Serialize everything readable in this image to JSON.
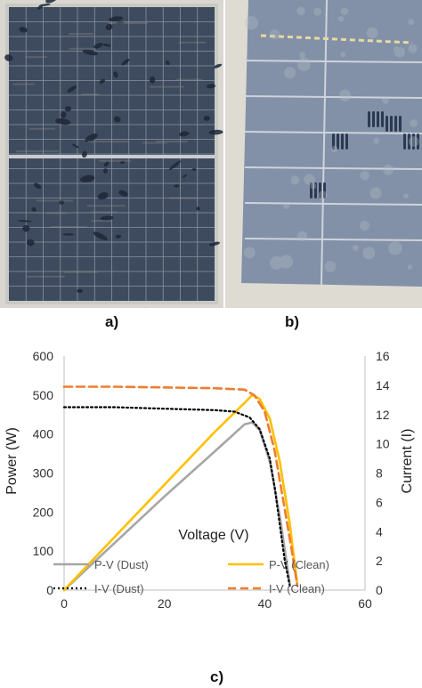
{
  "panels": {
    "a": "a)",
    "b": "b)",
    "c": "c)"
  },
  "photos": {
    "a": {
      "subject": "full solar module with dust and bird droppings",
      "frame_color": "#c7c9c4",
      "cell_color": "#3e4b5e"
    },
    "b": {
      "subject": "close-up of dusty solar cells with hand prints",
      "frame_color": "#dedbd2",
      "cell_color": "#8291a8"
    }
  },
  "chart_data": {
    "type": "line",
    "xlabel": "Voltage (V)",
    "ylabel_left": "Power (W)",
    "ylabel_right": "Current (I)",
    "xlim": [
      0,
      60
    ],
    "ylim_left": [
      0,
      600
    ],
    "ylim_right": [
      0,
      16
    ],
    "xticks": [
      0,
      20,
      40,
      60
    ],
    "yticks_left": [
      0,
      100,
      200,
      300,
      400,
      500,
      600
    ],
    "yticks_right": [
      0,
      2,
      4,
      6,
      8,
      10,
      12,
      14,
      16
    ],
    "grid": false,
    "legend_position": "bottom",
    "series": [
      {
        "name": "P-V (Dust)",
        "axis": "left",
        "color": "#a6a6a6",
        "style": "solid",
        "x": [
          0,
          10,
          20,
          30,
          36,
          37.5,
          39,
          41,
          43,
          44.5,
          45
        ],
        "y": [
          0,
          120,
          240,
          355,
          425,
          430,
          410,
          330,
          190,
          60,
          15
        ]
      },
      {
        "name": "P-V (Clean)",
        "axis": "left",
        "color": "#ffc000",
        "style": "solid",
        "x": [
          0,
          10,
          20,
          30,
          36,
          37.5,
          39,
          41,
          43,
          45,
          46.5
        ],
        "y": [
          0,
          135,
          270,
          405,
          480,
          500,
          490,
          440,
          330,
          170,
          15
        ]
      },
      {
        "name": "I-V (Dust)",
        "axis": "right",
        "color": "#000000",
        "style": "dotted",
        "x": [
          0,
          10,
          20,
          30,
          34,
          37,
          39,
          41,
          42,
          43,
          44,
          45
        ],
        "y": [
          12.5,
          12.5,
          12.4,
          12.3,
          12.2,
          11.8,
          11.0,
          9.0,
          7.0,
          4.5,
          2.0,
          0.3
        ]
      },
      {
        "name": "I-V (Clean)",
        "axis": "right",
        "color": "#ed7d31",
        "style": "dashed",
        "x": [
          0,
          10,
          20,
          30,
          36,
          38,
          40,
          42,
          44,
          45.5,
          46.5
        ],
        "y": [
          13.9,
          13.9,
          13.85,
          13.8,
          13.7,
          13.3,
          12.2,
          9.5,
          5.5,
          2.5,
          0.3
        ]
      }
    ]
  }
}
